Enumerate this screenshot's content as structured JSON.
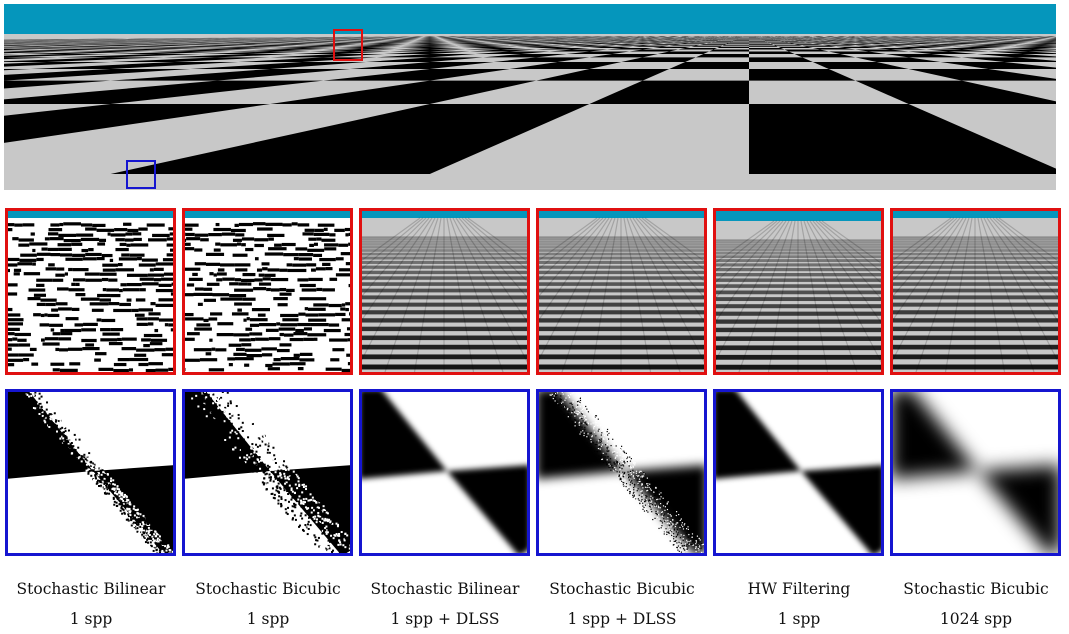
{
  "figure": {
    "colors": {
      "sky": "#0596bc",
      "horizon": "#c8c8c8",
      "red_frame": "#e01010",
      "blue_frame": "#1515d0",
      "dark": "#000000",
      "light": "#ffffff"
    },
    "methods": [
      {
        "name": "Stochastic Bilinear",
        "spp": "1 spp",
        "far_style": "noise",
        "near_style": "noise"
      },
      {
        "name": "Stochastic Bicubic",
        "spp": "1 spp",
        "far_style": "noise",
        "near_style": "noise-wide"
      },
      {
        "name": "Stochastic Bilinear",
        "spp": "1 spp + DLSS",
        "far_style": "smooth",
        "near_style": "smooth"
      },
      {
        "name": "Stochastic Bicubic",
        "spp": "1 spp + DLSS",
        "far_style": "smooth",
        "near_style": "grain"
      },
      {
        "name": "HW Filtering",
        "spp": "1 spp",
        "far_style": "smooth-horizon",
        "near_style": "smooth"
      },
      {
        "name": "Stochastic Bicubic",
        "spp": "1024 spp",
        "far_style": "smooth",
        "near_style": "wide-blur"
      }
    ]
  }
}
